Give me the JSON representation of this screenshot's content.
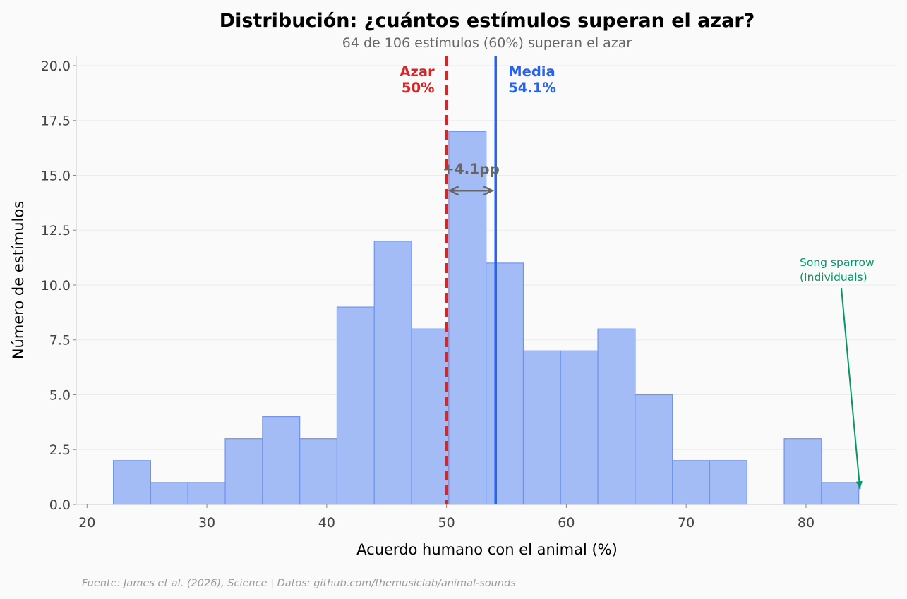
{
  "chart_data": {
    "type": "histogram",
    "title": "Distribución: ¿cuántos estímulos superan el azar?",
    "subtitle": "64 de 106 estímulos (60%) superan el azar",
    "xlabel": "Acuerdo humano con el animal (%)",
    "ylabel": "Número de estímulos",
    "xlim": [
      19.1,
      87.6
    ],
    "ylim": [
      0,
      20.45
    ],
    "xticks": [
      20,
      30,
      40,
      50,
      60,
      70,
      80
    ],
    "yticks": [
      0,
      2.5,
      5,
      7.5,
      10,
      12.5,
      15,
      17.5,
      20
    ],
    "ytick_labels": [
      "0.0",
      "2.5",
      "5.0",
      "7.5",
      "10.0",
      "12.5",
      "15.0",
      "17.5",
      "20.0"
    ],
    "bin_edges": [
      22.2,
      25.31,
      28.42,
      31.53,
      34.64,
      37.75,
      40.86,
      43.97,
      47.08,
      50.19,
      53.3,
      56.41,
      59.52,
      62.63,
      65.74,
      68.85,
      71.96,
      75.07,
      78.18,
      81.29,
      84.4
    ],
    "counts": [
      2,
      1,
      1,
      3,
      4,
      3,
      9,
      12,
      8,
      17,
      11,
      7,
      7,
      8,
      5,
      2,
      2,
      0,
      3,
      1
    ],
    "bar_color": "#a4bcf6",
    "chance_line": {
      "x": 50,
      "label": "Azar",
      "value_label": "50%",
      "color": "#d62728"
    },
    "mean_line": {
      "x": 54.1,
      "label": "Media",
      "value_label": "54.1%",
      "color": "#2563eb"
    },
    "difference_annotation": {
      "text": "+4.1pp",
      "y": 14.3,
      "color": "#666666"
    },
    "point_annotation": {
      "text_line1": "Song sparrow",
      "text_line2": "(Individuals)",
      "x": 84.5,
      "y": 0.7,
      "color": "#059669"
    },
    "source": "Fuente: James et al. (2026), Science | Datos: github.com/themusiclab/animal-sounds",
    "grid": "horizontal"
  }
}
